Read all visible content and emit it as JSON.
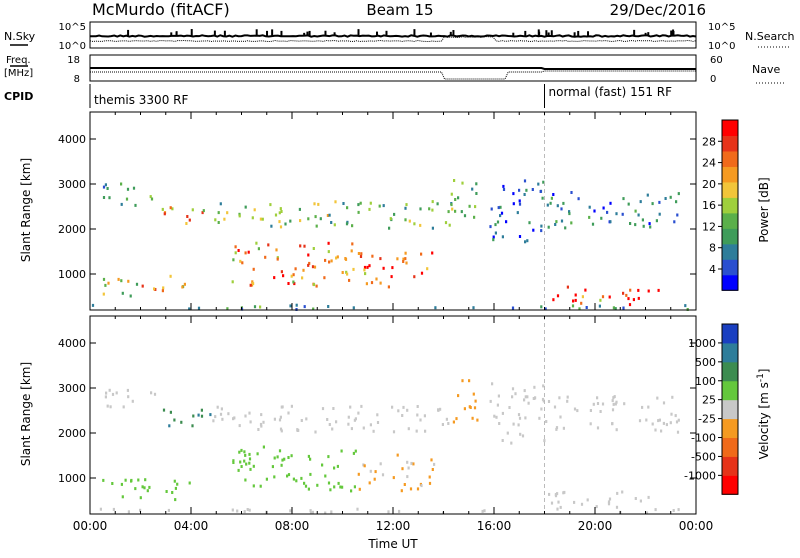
{
  "header": {
    "station": "McMurdo (fitACF)",
    "beam": "Beam 15",
    "date": "29/Dec/2016"
  },
  "status_panels": {
    "nsky_label": "N.Sky",
    "nsearch_label": "N.Search",
    "freq_label_line1": "Freq.",
    "freq_label_line2": "[MHz]",
    "nave_label": "Nave",
    "cpid_label": "CPID",
    "noise_ticks": [
      "10^5",
      "10^0"
    ],
    "freq_ticks": [
      "18",
      "8"
    ],
    "nave_ticks": [
      "60",
      "0"
    ],
    "cpid_modes": [
      {
        "name": "themis 3300 RF",
        "start_hour": 0,
        "end_hour": 18
      },
      {
        "name": "normal (fast) 151 RF",
        "start_hour": 18,
        "end_hour": 24
      }
    ]
  },
  "chart_data": [
    {
      "type": "heatmap",
      "parameter": "power",
      "ylabel": "Slant Range [km]",
      "xlabel": "",
      "xlim_hours": [
        0,
        24
      ],
      "ylim": [
        200,
        4600
      ],
      "y_ticks": [
        "1000",
        "2000",
        "3000",
        "4000"
      ],
      "colorbar": {
        "title": "Power [dB]",
        "ticks": [
          "4",
          "8",
          "12",
          "16",
          "20",
          "24",
          "28"
        ],
        "range": [
          0,
          30
        ],
        "colors": [
          "#0000ff",
          "#2a4fd0",
          "#2e7d9a",
          "#3f9c5a",
          "#5bb04a",
          "#9fcf3c",
          "#f2c53a",
          "#f59a21",
          "#f06a1a",
          "#e63319",
          "#ff0000"
        ]
      },
      "echo_regions": [
        {
          "t0": 0.5,
          "t1": 2.6,
          "r0": 2500,
          "r1": 3000,
          "level": 10
        },
        {
          "t0": 2.5,
          "t1": 4.8,
          "r0": 2100,
          "r1": 2500,
          "level": 20
        },
        {
          "t0": 4.8,
          "t1": 14.6,
          "r0": 2000,
          "r1": 2600,
          "level": 13
        },
        {
          "t0": 0.4,
          "t1": 2.0,
          "r0": 500,
          "r1": 1000,
          "level": 16
        },
        {
          "t0": 2.0,
          "t1": 3.8,
          "r0": 600,
          "r1": 1000,
          "level": 20
        },
        {
          "t0": 5.5,
          "t1": 10.5,
          "r0": 700,
          "r1": 1700,
          "level": 21
        },
        {
          "t0": 10.6,
          "t1": 13.6,
          "r0": 700,
          "r1": 1500,
          "level": 24
        },
        {
          "t0": 14.2,
          "t1": 15.3,
          "r0": 2200,
          "r1": 3200,
          "level": 10
        },
        {
          "t0": 15.8,
          "t1": 18.0,
          "r0": 1700,
          "r1": 3100,
          "level": 6
        },
        {
          "t0": 18.0,
          "t1": 23.3,
          "r0": 2000,
          "r1": 2800,
          "level": 7
        },
        {
          "t0": 18.0,
          "t1": 22.5,
          "r0": 300,
          "r1": 700,
          "level": 25
        },
        {
          "t0": 0.0,
          "t1": 24.0,
          "r0": 200,
          "r1": 300,
          "level": 9
        }
      ]
    },
    {
      "type": "heatmap",
      "parameter": "velocity",
      "ylabel": "Slant Range [km]",
      "xlabel": "Time UT",
      "xlim_hours": [
        0,
        24
      ],
      "ylim": [
        200,
        4600
      ],
      "x_ticks": [
        "00:00",
        "04:00",
        "08:00",
        "12:00",
        "16:00",
        "20:00",
        "00:00"
      ],
      "y_ticks": [
        "1000",
        "2000",
        "3000",
        "4000"
      ],
      "colorbar": {
        "title": "Velocity [m s^-1]",
        "ticks": [
          "1000",
          "500",
          "100",
          "25",
          "-25",
          "-100",
          "-500",
          "-1000"
        ],
        "range": [
          -1200,
          1200
        ],
        "colors": [
          "#ff0000",
          "#e63319",
          "#f06a1a",
          "#f59a21",
          "#c8c8c8",
          "#64c83c",
          "#3c8c50",
          "#2e7d9a",
          "#1a3fc0"
        ]
      },
      "echo_regions": [
        {
          "t0": 0.5,
          "t1": 2.6,
          "r0": 2500,
          "r1": 3000,
          "level": 30
        },
        {
          "t0": 2.5,
          "t1": 4.8,
          "r0": 2100,
          "r1": 2500,
          "level": 600
        },
        {
          "t0": 4.8,
          "t1": 14.6,
          "r0": 2000,
          "r1": 2600,
          "level": 0
        },
        {
          "t0": 0.4,
          "t1": 4.0,
          "r0": 500,
          "r1": 1000,
          "level": 200
        },
        {
          "t0": 5.5,
          "t1": 10.5,
          "r0": 700,
          "r1": 1700,
          "level": 200
        },
        {
          "t0": 10.6,
          "t1": 13.6,
          "r0": 700,
          "r1": 1500,
          "level": -150
        },
        {
          "t0": 14.2,
          "t1": 15.3,
          "r0": 2200,
          "r1": 3200,
          "level": -200
        },
        {
          "t0": 15.8,
          "t1": 18.0,
          "r0": 1700,
          "r1": 3100,
          "level": 0
        },
        {
          "t0": 18.0,
          "t1": 23.3,
          "r0": 2000,
          "r1": 2800,
          "level": 0
        },
        {
          "t0": 18.0,
          "t1": 22.5,
          "r0": 300,
          "r1": 700,
          "level": 80
        },
        {
          "t0": 0.0,
          "t1": 24.0,
          "r0": 200,
          "r1": 300,
          "level": 0
        }
      ]
    }
  ]
}
